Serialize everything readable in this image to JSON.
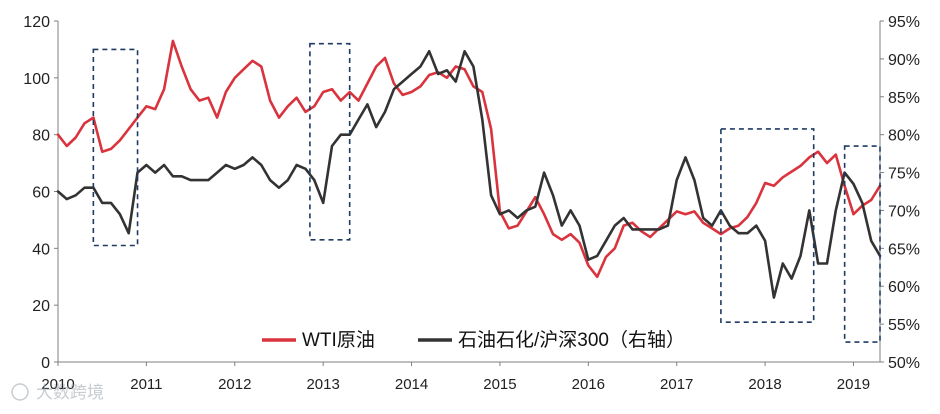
{
  "chart_data": {
    "type": "line",
    "title": "",
    "xlabel": "",
    "ylabel": "",
    "x_ticks": [
      "2010",
      "2011",
      "2012",
      "2013",
      "2014",
      "2015",
      "2016",
      "2017",
      "2018",
      "2019"
    ],
    "xlim": [
      2010.0,
      2019.3
    ],
    "y_left": {
      "lim": [
        0,
        120
      ],
      "ticks": [
        "0",
        "20",
        "40",
        "60",
        "80",
        "100",
        "120"
      ]
    },
    "y_right": {
      "lim": [
        50,
        95
      ],
      "ticks": [
        "50%",
        "55%",
        "60%",
        "65%",
        "70%",
        "75%",
        "80%",
        "85%",
        "90%",
        "95%"
      ]
    },
    "grid": false,
    "legend_position": "bottom-center",
    "series": [
      {
        "name": "WTI原油",
        "axis": "left",
        "color": "#d9343e",
        "x": [
          2010.0,
          2010.1,
          2010.2,
          2010.3,
          2010.4,
          2010.5,
          2010.6,
          2010.7,
          2010.8,
          2010.9,
          2011.0,
          2011.1,
          2011.2,
          2011.3,
          2011.4,
          2011.5,
          2011.6,
          2011.7,
          2011.8,
          2011.9,
          2012.0,
          2012.1,
          2012.2,
          2012.3,
          2012.4,
          2012.5,
          2012.6,
          2012.7,
          2012.8,
          2012.9,
          2013.0,
          2013.1,
          2013.2,
          2013.3,
          2013.4,
          2013.5,
          2013.6,
          2013.7,
          2013.8,
          2013.9,
          2014.0,
          2014.1,
          2014.2,
          2014.3,
          2014.4,
          2014.5,
          2014.6,
          2014.7,
          2014.8,
          2014.9,
          2015.0,
          2015.1,
          2015.2,
          2015.3,
          2015.4,
          2015.5,
          2015.6,
          2015.7,
          2015.8,
          2015.9,
          2016.0,
          2016.1,
          2016.2,
          2016.3,
          2016.4,
          2016.5,
          2016.6,
          2016.7,
          2016.8,
          2016.9,
          2017.0,
          2017.1,
          2017.2,
          2017.3,
          2017.4,
          2017.5,
          2017.6,
          2017.7,
          2017.8,
          2017.9,
          2018.0,
          2018.1,
          2018.2,
          2018.3,
          2018.4,
          2018.5,
          2018.6,
          2018.7,
          2018.8,
          2018.9,
          2019.0,
          2019.1,
          2019.2,
          2019.3
        ],
        "values": [
          80,
          76,
          79,
          84,
          86,
          74,
          75,
          78,
          82,
          86,
          90,
          89,
          96,
          113,
          104,
          96,
          92,
          93,
          86,
          95,
          100,
          103,
          106,
          104,
          92,
          86,
          90,
          93,
          88,
          90,
          95,
          96,
          92,
          95,
          92,
          98,
          104,
          107,
          98,
          94,
          95,
          97,
          101,
          102,
          100,
          104,
          103,
          97,
          95,
          82,
          53,
          47,
          48,
          53,
          58,
          52,
          45,
          43,
          45,
          42,
          34,
          30,
          37,
          40,
          48,
          49,
          46,
          44,
          47,
          50,
          53,
          52,
          53,
          49,
          47,
          45,
          47,
          48,
          51,
          56,
          63,
          62,
          65,
          67,
          69,
          72,
          74,
          70,
          73,
          62,
          52,
          55,
          57,
          62
        ],
        "values_note": ""
      },
      {
        "name": "石油石化/沪深300（右轴）",
        "axis": "right",
        "color": "#333333",
        "x": [
          2010.0,
          2010.1,
          2010.2,
          2010.3,
          2010.4,
          2010.5,
          2010.6,
          2010.7,
          2010.8,
          2010.9,
          2011.0,
          2011.1,
          2011.2,
          2011.3,
          2011.4,
          2011.5,
          2011.6,
          2011.7,
          2011.8,
          2011.9,
          2012.0,
          2012.1,
          2012.2,
          2012.3,
          2012.4,
          2012.5,
          2012.6,
          2012.7,
          2012.8,
          2012.9,
          2013.0,
          2013.1,
          2013.2,
          2013.3,
          2013.4,
          2013.5,
          2013.6,
          2013.7,
          2013.8,
          2013.9,
          2014.0,
          2014.1,
          2014.2,
          2014.3,
          2014.4,
          2014.5,
          2014.6,
          2014.7,
          2014.8,
          2014.9,
          2015.0,
          2015.1,
          2015.2,
          2015.3,
          2015.4,
          2015.5,
          2015.6,
          2015.7,
          2015.8,
          2015.9,
          2016.0,
          2016.1,
          2016.2,
          2016.3,
          2016.4,
          2016.5,
          2016.6,
          2016.7,
          2016.8,
          2016.9,
          2017.0,
          2017.1,
          2017.2,
          2017.3,
          2017.4,
          2017.5,
          2017.6,
          2017.7,
          2017.8,
          2017.9,
          2018.0,
          2018.1,
          2018.2,
          2018.3,
          2018.4,
          2018.5,
          2018.6,
          2018.7,
          2018.8,
          2018.9,
          2019.0,
          2019.1,
          2019.2,
          2019.3
        ],
        "values": [
          72.5,
          71.5,
          72,
          73,
          73,
          71,
          71,
          69.5,
          67,
          75,
          76,
          75,
          76,
          74.5,
          74.5,
          74,
          74,
          74,
          75,
          76,
          75.5,
          76,
          77,
          76,
          74,
          73,
          74,
          76,
          75.5,
          74,
          71,
          78.5,
          80,
          80,
          82,
          84,
          81,
          83,
          86,
          87,
          88,
          89,
          91,
          88,
          88.5,
          87,
          91,
          89,
          82,
          72,
          69.5,
          70,
          69,
          70,
          70.5,
          75,
          72,
          68,
          70,
          68,
          63.5,
          64,
          66,
          68,
          69,
          67.5,
          67.5,
          67.5,
          67.5,
          68,
          74,
          77,
          74,
          69,
          68,
          70,
          68,
          67,
          67,
          68,
          66,
          58.5,
          63,
          61,
          64,
          70,
          63,
          63,
          70,
          75,
          73.5,
          71,
          66,
          64
        ],
        "values_note": ""
      }
    ],
    "highlight_boxes": [
      {
        "x": [
          2010.4,
          2010.9
        ],
        "y_left": [
          41,
          110
        ]
      },
      {
        "x": [
          2012.85,
          2013.3
        ],
        "y_left": [
          43,
          112
        ]
      },
      {
        "x": [
          2017.5,
          2018.55
        ],
        "y_left": [
          14,
          82
        ]
      },
      {
        "x": [
          2018.9,
          2019.3
        ],
        "y_left": [
          7,
          76
        ]
      }
    ],
    "box_color": "#1f3b63"
  },
  "watermark": "大数跨境"
}
